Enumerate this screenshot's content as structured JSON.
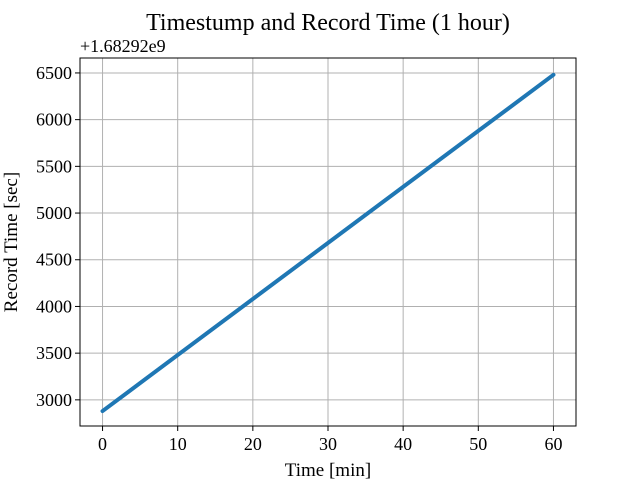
{
  "chart_data": {
    "type": "line",
    "title": "Timestump and Record Time (1 hour)",
    "xlabel": "Time [min]",
    "ylabel": "Record Time [sec]",
    "y_offset_label": "+1.68292e9",
    "xlim": [
      -3,
      63
    ],
    "ylim": [
      2720,
      6660
    ],
    "xticks": [
      0,
      10,
      20,
      30,
      40,
      50,
      60
    ],
    "yticks": [
      3000,
      3500,
      4000,
      4500,
      5000,
      5500,
      6000,
      6500
    ],
    "xtick_labels": [
      "0",
      "10",
      "20",
      "30",
      "40",
      "50",
      "60"
    ],
    "ytick_labels": [
      "3000",
      "3500",
      "4000",
      "4500",
      "5000",
      "5500",
      "6000",
      "6500"
    ],
    "grid": true,
    "series": [
      {
        "color": "#1f77b4",
        "x": [
          0,
          60
        ],
        "y": [
          2880,
          6480
        ]
      }
    ]
  }
}
